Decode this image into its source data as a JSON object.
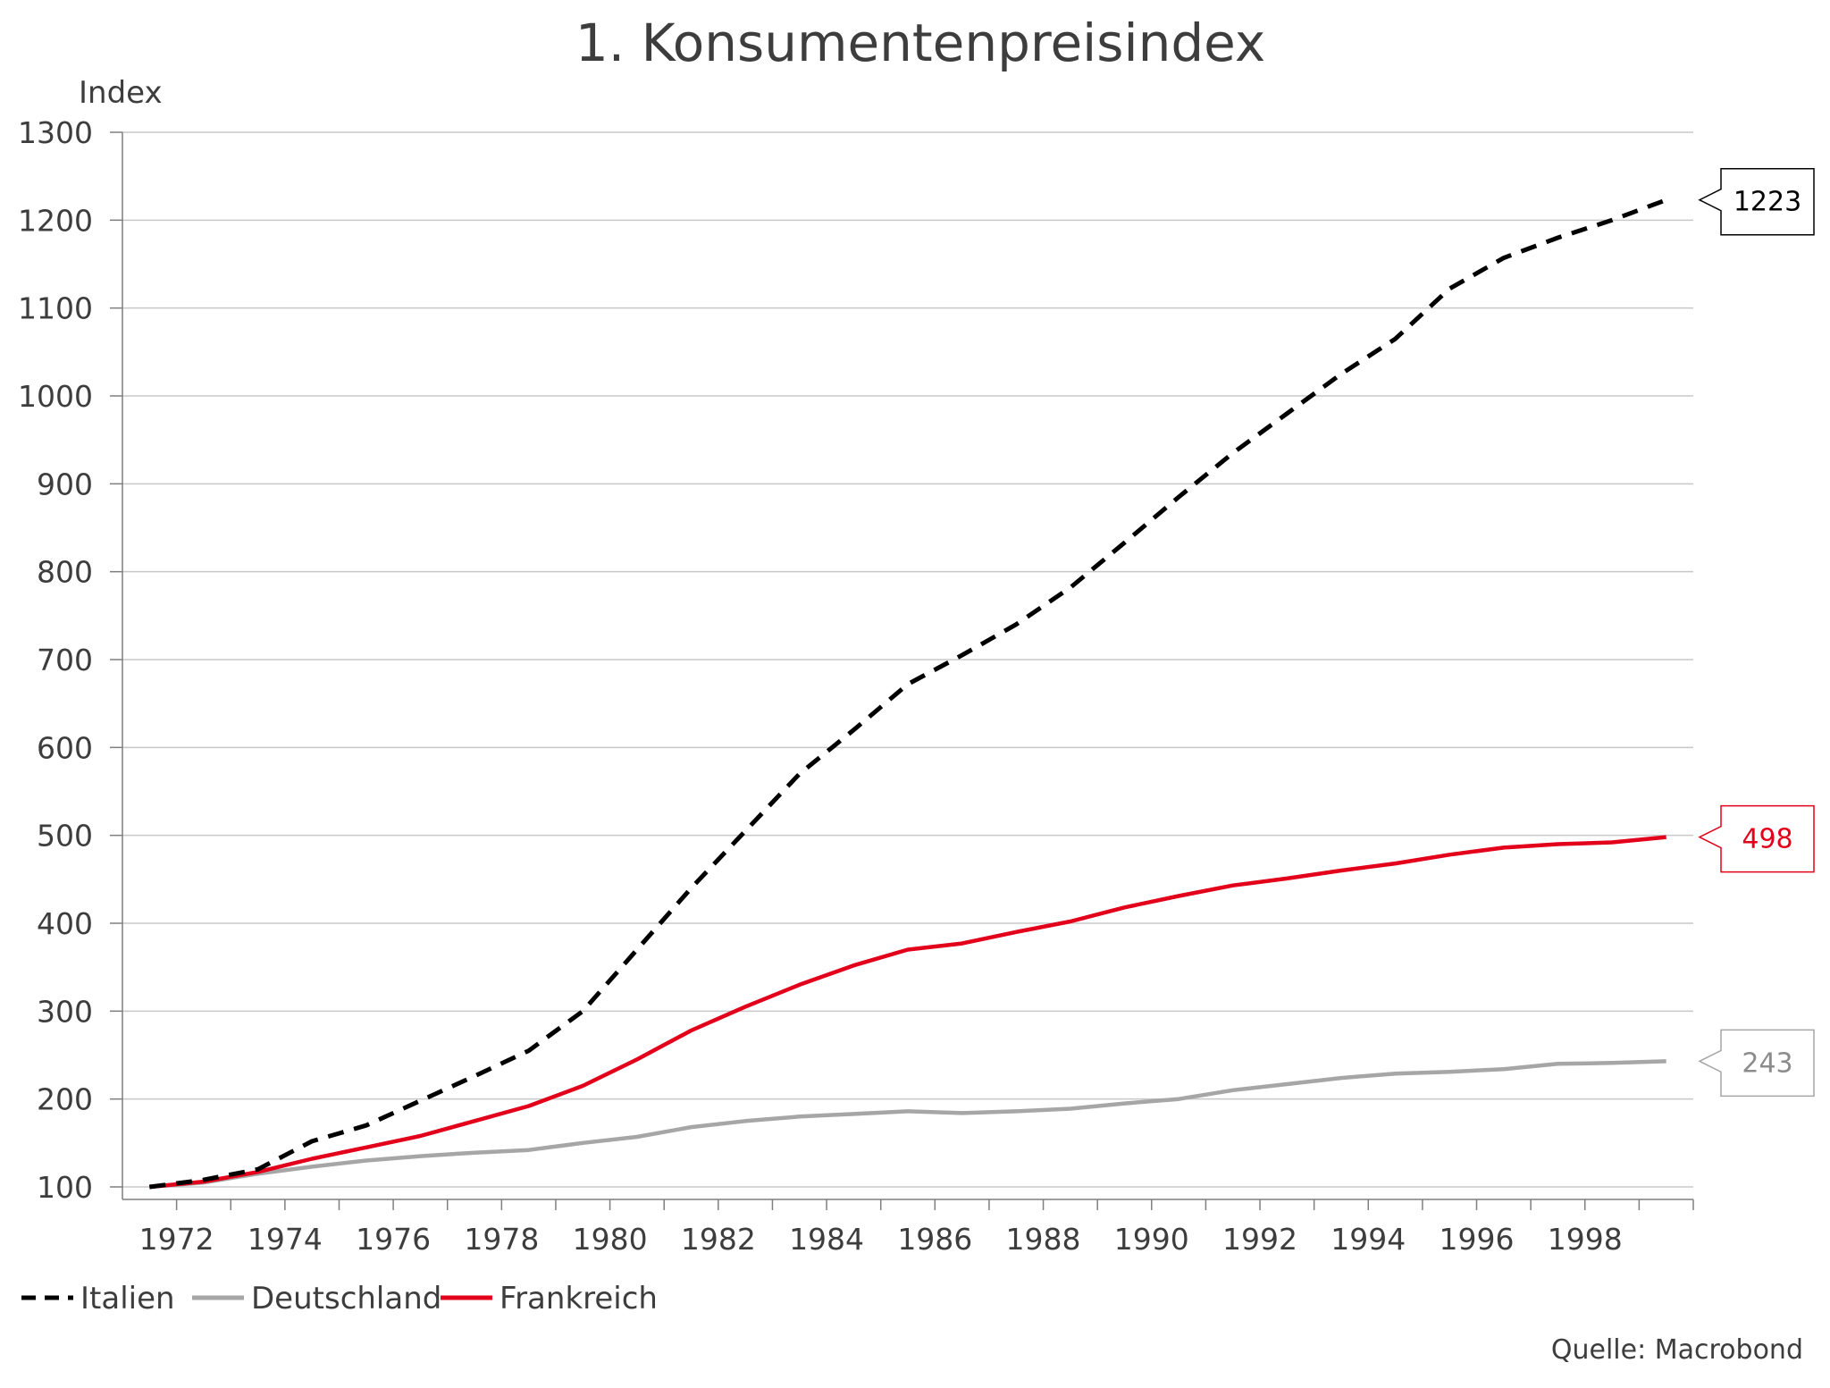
{
  "chart_data": {
    "type": "line",
    "title": "1. Konsumentenpreisindex",
    "ylabel": "Index",
    "xlabel": "",
    "ylim": [
      100,
      1300
    ],
    "xlim": [
      1971.0,
      2000.0
    ],
    "y_ticks": [
      "100",
      "200",
      "300",
      "400",
      "500",
      "600",
      "700",
      "800",
      "900",
      "1000",
      "1100",
      "1200",
      "1300"
    ],
    "x_ticks": [
      "1972",
      "1974",
      "1976",
      "1978",
      "1980",
      "1982",
      "1984",
      "1986",
      "1988",
      "1990",
      "1992",
      "1994",
      "1996",
      "1998"
    ],
    "grid": "horizontal",
    "legend_position": "bottom-left",
    "source": "Quelle: Macrobond",
    "colors": {
      "Italien": "#000000",
      "Deutschland": "#a6a6a6",
      "Frankreich": "#e2001a"
    },
    "x": [
      1971.5,
      1972.5,
      1973.5,
      1974.5,
      1975.5,
      1976.5,
      1977.5,
      1978.5,
      1979.5,
      1980.5,
      1981.5,
      1982.5,
      1983.5,
      1984.5,
      1985.5,
      1986.5,
      1987.5,
      1988.5,
      1989.5,
      1990.5,
      1991.5,
      1992.5,
      1993.5,
      1994.5,
      1995.5,
      1996.5,
      1997.5,
      1998.5,
      1999.5
    ],
    "series": [
      {
        "name": "Italien",
        "style": "dashed",
        "values": [
          100,
          108,
          120,
          152,
          170,
          198,
          226,
          255,
          300,
          370,
          440,
          505,
          570,
          620,
          672,
          705,
          740,
          782,
          833,
          885,
          935,
          980,
          1025,
          1065,
          1122,
          1157,
          1180,
          1200,
          1223
        ],
        "end_label": "1223"
      },
      {
        "name": "Deutschland",
        "style": "solid",
        "values": [
          100,
          105,
          115,
          123,
          130,
          135,
          139,
          142,
          150,
          157,
          168,
          175,
          180,
          183,
          186,
          184,
          186,
          189,
          195,
          200,
          210,
          217,
          224,
          229,
          231,
          234,
          240,
          241,
          243
        ],
        "end_label": "243"
      },
      {
        "name": "Frankreich",
        "style": "solid",
        "values": [
          100,
          106,
          117,
          132,
          145,
          158,
          175,
          192,
          215,
          245,
          278,
          305,
          330,
          352,
          370,
          377,
          390,
          402,
          418,
          431,
          443,
          451,
          460,
          468,
          478,
          486,
          490,
          492,
          498
        ],
        "end_label": "498"
      }
    ]
  }
}
